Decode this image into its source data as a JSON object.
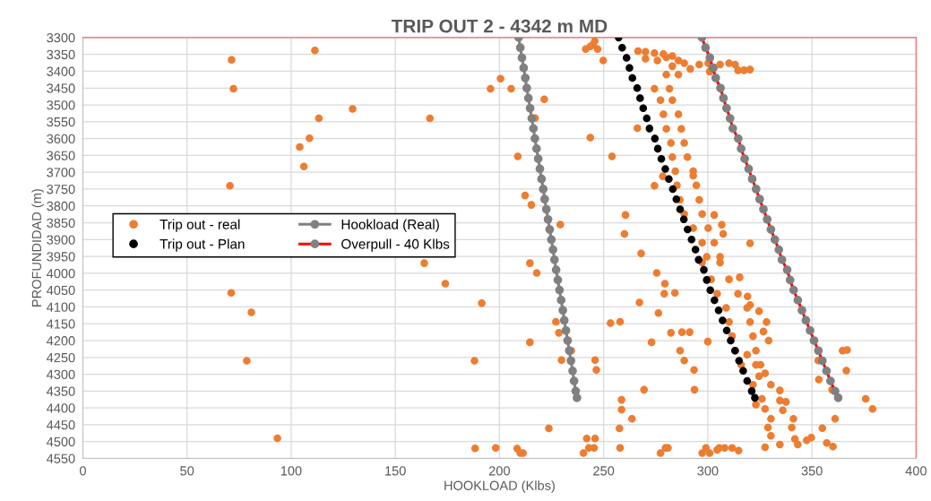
{
  "chart_data": {
    "type": "scatter",
    "title": "TRIP OUT 2 - 4342 m MD",
    "xlabel": "HOOKLOAD (Klbs)",
    "ylabel": "PROFUNDIDAD (m)",
    "xlim": [
      0,
      400
    ],
    "xticks": [
      0,
      50,
      100,
      150,
      200,
      250,
      300,
      350,
      400
    ],
    "ylim": [
      4550,
      3300
    ],
    "yticks": [
      3300,
      3350,
      3400,
      3450,
      3500,
      3550,
      3600,
      3650,
      3700,
      3750,
      3800,
      3850,
      3900,
      3950,
      4000,
      4050,
      4100,
      4150,
      4200,
      4250,
      4300,
      4350,
      4400,
      4450,
      4500,
      4550
    ],
    "grid": true,
    "legend": "left",
    "marker": "circle",
    "series": [
      {
        "name": "Trip out - real",
        "color": "#ed7d31",
        "x": [
          71.4,
          111.4,
          72.3,
          195.7,
          205.6,
          200.5,
          221.5,
          129.5,
          113.3,
          166.6,
          108.8,
          104.1,
          106.1,
          70.6,
          163.9,
          174.0,
          71.2,
          191.5,
          80.9,
          78.7,
          188.0,
          93.4,
          188.3,
          214.6,
          217.9,
          214.6,
          227.1,
          228.5,
          234.5,
          229.8,
          245.9,
          246.5,
          223.7,
          241.9,
          245.9,
          242.9,
          245.4,
          240.3,
          208.5,
          210.0,
          211.3,
          198.2,
          253.3,
          257.9,
          267.2,
          275.5,
          276.3,
          273.0,
          269.4,
          258.6,
          258.6,
          263.6,
          257.6,
          257.9,
          279.4,
          279.1,
          284.2,
          282.3,
          287.6,
          291.3,
          286.7,
          288.7,
          293.4,
          293.6,
          300.0,
          279.7,
          280.9,
          277.3,
          299.1,
          297.3,
          300.9,
          305.5,
          308.1,
          311.7,
          314.8,
          304.5,
          245.7,
          243.6,
          241.4,
          247.1,
          245.0,
          249.8,
          217.1,
          208.8,
          243.6,
          254.0,
          266.2,
          212.3,
          215.3,
          229.2,
          260.5,
          260.0,
          268.0,
          274.4,
          278.4,
          266.5,
          270.1,
          274.4,
          278.7,
          283.0,
          285.9,
          288.7,
          291.6,
          295.9,
          300.2,
          303.1,
          305.9,
          310.2,
          313.1,
          314.5,
          317.4,
          320.3,
          270.1,
          275.8,
          280.1,
          283.0,
          300.9,
          280.1,
          285.9,
          274.4,
          281.6,
          277.3,
          283.0,
          278.7,
          285.9,
          280.1,
          287.3,
          282.3,
          288.7,
          283.0,
          290.2,
          284.4,
          293.0,
          285.2,
          294.5,
          286.6,
          295.9,
          288.7,
          297.3,
          293.0,
          300.2,
          297.3,
          303.1,
          299.5,
          305.9,
          293.0,
          303.1,
          306.7,
          307.4,
          320.3,
          297.3,
          305.9,
          301.6,
          310.2,
          304.5,
          314.5,
          308.8,
          318.9,
          310.2,
          320.3,
          311.7,
          321.7,
          313.1,
          323.1,
          316.0,
          325.3,
          315.3,
          319.1,
          320.3,
          324.6,
          328.2,
          326.7,
          329.2,
          364.7,
          366.9,
          366.5,
          353.0,
          353.3,
          359.7,
          375.8,
          379.1,
          361.1,
          355.0,
          357.1,
          360.1,
          349.7,
          326.0,
          334.6,
          337.5,
          327.5,
          336.0,
          341.1,
          330.3,
          328.9,
          340.3,
          330.3,
          341.8,
          347.5,
          334.6,
          327.5,
          343.2,
          321.7,
          324.6,
          323.1,
          318.9,
          323.1,
          327.5,
          330.3,
          334.6
        ],
        "values": [
          3366,
          3338,
          3452,
          3452,
          3452,
          3422,
          3483,
          3512,
          3540,
          3540,
          3599,
          3625,
          3683,
          3740,
          3970,
          4031,
          4058,
          4089,
          4116,
          4260,
          4260,
          4490,
          4520,
          3970,
          3999,
          4205,
          4144,
          4177,
          4230,
          4258,
          4258,
          4287,
          4461,
          4491,
          4491,
          4519,
          4519,
          4534,
          4521,
          4534,
          4534,
          4519,
          4148,
          4144,
          4087,
          3999,
          4118,
          4205,
          4346,
          4376,
          4405,
          4432,
          4461,
          4519,
          4031,
          4061,
          4058,
          4177,
          4175,
          4175,
          4230,
          4259,
          4287,
          4346,
          4203,
          4519,
          4519,
          4534,
          4519,
          4534,
          4534,
          4519,
          4519,
          4519,
          4527,
          4525,
          3310,
          3326,
          3334,
          3334,
          3321,
          3368,
          3539,
          3653,
          3597,
          3653,
          3569,
          3769,
          3797,
          3855,
          3827,
          3883,
          3941,
          3740,
          3712,
          3340,
          3342,
          3346,
          3349,
          3355,
          3368,
          3376,
          3393,
          3380,
          3376,
          3389,
          3380,
          3376,
          3380,
          3397,
          3397,
          3395,
          3363,
          3368,
          3359,
          3385,
          3401,
          3410,
          3410,
          3452,
          3452,
          3486,
          3486,
          3528,
          3528,
          3571,
          3571,
          3613,
          3613,
          3655,
          3655,
          3697,
          3697,
          3739,
          3739,
          3782,
          3782,
          3824,
          3824,
          3866,
          3866,
          3909,
          3909,
          3951,
          3951,
          3710,
          3827,
          3856,
          3883,
          3911,
          3968,
          3968,
          4018,
          4018,
          4061,
          4061,
          4103,
          4103,
          4145,
          4145,
          4187,
          4187,
          4230,
          4230,
          4272,
          4272,
          4012,
          4069,
          4094,
          4113,
          4145,
          4173,
          4200,
          4230,
          4228,
          4289,
          4259,
          4316,
          4346,
          4373,
          4403,
          4432,
          4460,
          4504,
          4515,
          4488,
          4373,
          4378,
          4382,
          4403,
          4407,
          4432,
          4432,
          4458,
          4458,
          4483,
          4492,
          4496,
          4509,
          4517,
          4509,
          4331,
          4306,
          4390,
          4242,
          4272,
          4297,
          4331,
          4348
        ]
      },
      {
        "name": "Trip out - Plan",
        "color": "#000000",
        "x": [
          257.2,
          258.9,
          261.0,
          262.4,
          263.8,
          266.1,
          267.5,
          269.0,
          270.7,
          272.0,
          274.6,
          276.0,
          277.7,
          279.6,
          281.3,
          283.2,
          284.9,
          286.7,
          288.5,
          290.3,
          292.2,
          294.1,
          295.6,
          298.1,
          299.5,
          301.2,
          303.2,
          305.2,
          307.1,
          309.1,
          311.0,
          313.1,
          315.0,
          317.0,
          318.9,
          321.1,
          322.6
        ],
        "values": [
          3300,
          3330,
          3360,
          3390,
          3420,
          3450,
          3480,
          3510,
          3540,
          3570,
          3600,
          3630,
          3660,
          3690,
          3720,
          3750,
          3780,
          3810,
          3840,
          3870,
          3900,
          3930,
          3960,
          3990,
          4020,
          4050,
          4080,
          4110,
          4140,
          4170,
          4200,
          4230,
          4260,
          4290,
          4320,
          4350,
          4370
        ]
      },
      {
        "name": "Hookload (Real)",
        "type": "line",
        "color": "#808080",
        "x": [
          209.2,
          210.0,
          210.8,
          211.6,
          212.4,
          213.1,
          213.9,
          214.7,
          215.5,
          216.3,
          217.0,
          217.8,
          218.6,
          219.4,
          220.2,
          221.0,
          221.7,
          222.5,
          223.3,
          224.1,
          224.9,
          225.7,
          226.4,
          227.2,
          228.0,
          228.8,
          229.6,
          230.4,
          231.1,
          231.9,
          232.7,
          233.5,
          234.3,
          235.1,
          235.8,
          236.6,
          237.2
        ],
        "values": [
          3300,
          3330,
          3360,
          3390,
          3420,
          3450,
          3480,
          3510,
          3540,
          3570,
          3600,
          3630,
          3660,
          3690,
          3720,
          3750,
          3780,
          3810,
          3840,
          3870,
          3900,
          3930,
          3960,
          3990,
          4020,
          4050,
          4080,
          4110,
          4140,
          4170,
          4200,
          4230,
          4260,
          4290,
          4320,
          4350,
          4370
        ]
      },
      {
        "name": "Overpull - 40 Klbs",
        "type": "line",
        "color": "#ff0000",
        "x": [
          297.2,
          298.9,
          301.0,
          302.4,
          303.8,
          306.1,
          307.5,
          309.0,
          310.7,
          312.0,
          314.6,
          316.0,
          317.7,
          319.6,
          321.3,
          323.2,
          324.9,
          326.7,
          328.5,
          330.3,
          332.2,
          334.1,
          335.6,
          338.1,
          339.5,
          341.2,
          343.2,
          345.2,
          347.1,
          349.1,
          351.0,
          353.1,
          355.0,
          357.0,
          358.9,
          361.1,
          362.6
        ],
        "values": [
          3300,
          3330,
          3360,
          3390,
          3420,
          3450,
          3480,
          3510,
          3540,
          3570,
          3600,
          3630,
          3660,
          3690,
          3720,
          3750,
          3780,
          3810,
          3840,
          3870,
          3900,
          3930,
          3960,
          3990,
          4020,
          4050,
          4080,
          4110,
          4140,
          4170,
          4200,
          4230,
          4260,
          4290,
          4320,
          4350,
          4370
        ]
      }
    ]
  }
}
